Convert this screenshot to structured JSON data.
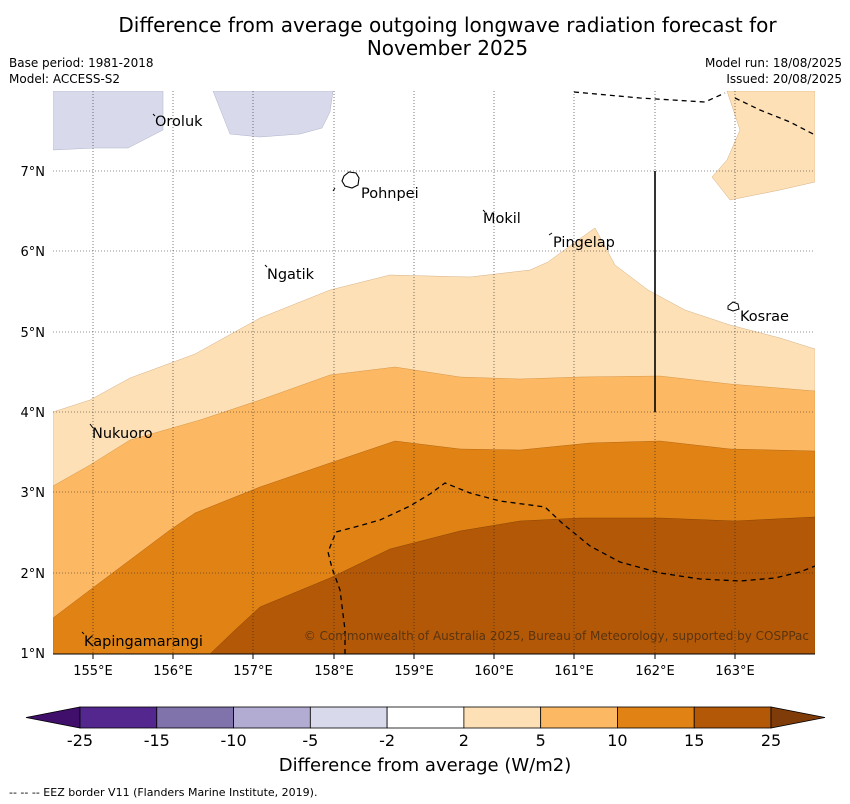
{
  "title": "Difference from average outgoing longwave radiation forecast for\nNovember 2025",
  "meta": {
    "base_period": "Base period: 1981-2018",
    "model": "Model: ACCESS-S2",
    "model_run": "Model run: 18/08/2025",
    "issued": "Issued: 20/08/2025"
  },
  "lon_ticks": [
    "155°E",
    "156°E",
    "157°E",
    "158°E",
    "159°E",
    "160°E",
    "161°E",
    "162°E",
    "163°E"
  ],
  "lat_ticks": [
    "7°N",
    "6°N",
    "5°N",
    "4°N",
    "3°N",
    "2°N",
    "1°N"
  ],
  "places": [
    {
      "name": "Oroluk"
    },
    {
      "name": "Pohnpei"
    },
    {
      "name": "Mokil"
    },
    {
      "name": "Pingelap"
    },
    {
      "name": "Ngatik"
    },
    {
      "name": "Kosrae"
    },
    {
      "name": "Nukuoro"
    },
    {
      "name": "Kapingamarangi"
    }
  ],
  "copyright": "© Commonwealth of Australia 2025, Bureau of Meteorology, supported by COSPPac",
  "colorbar": {
    "title": "Difference from average (W/m2)",
    "labels": [
      "-25",
      "-15",
      "-10",
      "-5",
      "-2",
      "2",
      "5",
      "10",
      "15",
      "25"
    ],
    "colors": [
      "#3f0f6b",
      "#54278f",
      "#8073ac",
      "#b2abd2",
      "#d8daeb",
      "#ffffff",
      "#fee0b6",
      "#fdb863",
      "#e08214",
      "#b35806",
      "#7f3b08"
    ]
  },
  "footnote": "--  --  -- EEZ border V11 (Flanders Marine Institute, 2019)."
}
